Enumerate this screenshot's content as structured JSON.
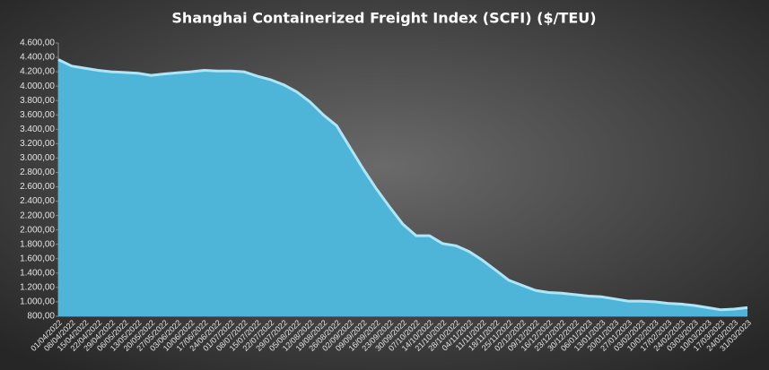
{
  "chart_data": {
    "type": "area",
    "title": "Shanghai  Containerized Freight Index  (SCFI) ($/TEU)",
    "categories": [
      "01/04/2022",
      "08/04/2022",
      "15/04/2022",
      "22/04/2022",
      "29/04/2022",
      "06/05/2022",
      "13/05/2022",
      "20/05/2022",
      "27/05/2022",
      "03/06/2022",
      "10/06/2022",
      "17/06/2022",
      "24/06/2022",
      "01/07/2022",
      "08/07/2022",
      "15/07/2022",
      "22/07/2022",
      "29/07/2022",
      "05/08/2022",
      "12/08/2022",
      "19/08/2022",
      "26/08/2022",
      "02/09/2022",
      "09/09/2022",
      "16/09/2022",
      "23/09/2022",
      "30/09/2022",
      "07/10/2022",
      "14/10/2022",
      "21/10/2022",
      "28/10/2022",
      "04/11/2022",
      "11/11/2022",
      "18/11/2022",
      "25/11/2022",
      "02/12/2022",
      "09/12/2022",
      "16/12/2022",
      "23/12/2022",
      "30/12/2022",
      "06/01/2023",
      "13/01/2023",
      "20/01/2023",
      "27/01/2023",
      "03/02/2023",
      "10/02/2023",
      "17/02/2023",
      "24/02/2023",
      "03/03/2023",
      "10/03/2023",
      "17/03/2023",
      "24/03/2023",
      "31/03/2023"
    ],
    "values": [
      4370,
      4280,
      4250,
      4220,
      4200,
      4190,
      4180,
      4150,
      4170,
      4185,
      4200,
      4220,
      4210,
      4210,
      4200,
      4140,
      4090,
      4020,
      3920,
      3780,
      3600,
      3450,
      3150,
      2850,
      2570,
      2320,
      2080,
      1920,
      1920,
      1810,
      1780,
      1700,
      1580,
      1440,
      1300,
      1230,
      1160,
      1130,
      1120,
      1100,
      1080,
      1070,
      1040,
      1010,
      1010,
      1000,
      980,
      970,
      950,
      920,
      890,
      900,
      920
    ],
    "color": "#4fb5d8",
    "line_color": "#aee6f7",
    "ylim": [
      800,
      4600
    ],
    "yticks": [
      {
        "value": 800,
        "label": "800,00"
      },
      {
        "value": 1000,
        "label": "1.000,00"
      },
      {
        "value": 1200,
        "label": "1.200,00"
      },
      {
        "value": 1400,
        "label": "1.400,00"
      },
      {
        "value": 1600,
        "label": "1.600,00"
      },
      {
        "value": 1800,
        "label": "1.800,00"
      },
      {
        "value": 2000,
        "label": "2.000,00"
      },
      {
        "value": 2200,
        "label": "2.200,00"
      },
      {
        "value": 2400,
        "label": "2.400,00"
      },
      {
        "value": 2600,
        "label": "2.600,00"
      },
      {
        "value": 2800,
        "label": "2.800,00"
      },
      {
        "value": 3000,
        "label": "3.000,00"
      },
      {
        "value": 3200,
        "label": "3.200,00"
      },
      {
        "value": 3400,
        "label": "3.400,00"
      },
      {
        "value": 3600,
        "label": "3.600,00"
      },
      {
        "value": 3800,
        "label": "3.800,00"
      },
      {
        "value": 4000,
        "label": "4.000,00"
      },
      {
        "value": 4200,
        "label": "4.200,00"
      },
      {
        "value": 4400,
        "label": "4.400,00"
      },
      {
        "value": 4600,
        "label": "4.600,00"
      }
    ],
    "grid": false
  }
}
